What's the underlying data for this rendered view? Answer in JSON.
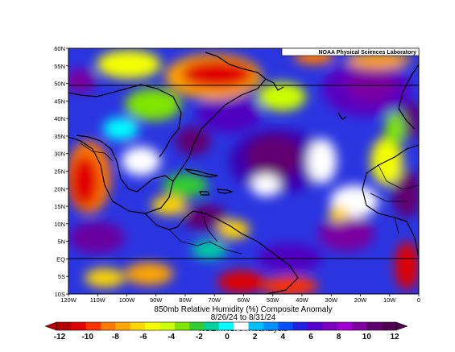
{
  "credit": "NOAA Physical Sciences Laboratory",
  "lat_labels": [
    "60N",
    "55N",
    "50N",
    "45N",
    "40N",
    "35N",
    "30N",
    "25N",
    "20N",
    "15N",
    "10N",
    "5N",
    "EQ",
    "5S",
    "10S"
  ],
  "lon_labels": [
    "120W",
    "110W",
    "100W",
    "90W",
    "80W",
    "70W",
    "60W",
    "50W",
    "40W",
    "30W",
    "20W",
    "10W",
    "0"
  ],
  "title": "850mb Relative Humidity (%) Composite Anomaly",
  "dates": "8/26/24  to 8/31/24",
  "source": "NCEP/NOAA Reanalysis",
  "colorbar": {
    "labels": [
      "-12",
      "-10",
      "-8",
      "-6",
      "-4",
      "-2",
      "0",
      "2",
      "4",
      "6",
      "8",
      "10",
      "12"
    ],
    "colors": [
      "#b40000",
      "#e00000",
      "#ff3300",
      "#ff7a00",
      "#ffa500",
      "#ffd700",
      "#f5ff00",
      "#cdff00",
      "#80e600",
      "#33cc33",
      "#00d0a0",
      "#00ffff",
      "#ffffff",
      "#00c0ff",
      "#0090ff",
      "#0050ff",
      "#2020e0",
      "#5500d0",
      "#7a00c0",
      "#a000d0",
      "#8000a0",
      "#600070",
      "#500050"
    ]
  },
  "map": {
    "lon_range": [
      -120,
      0
    ],
    "lat_range": [
      -10,
      60
    ],
    "background_color": "#2a35e0",
    "ref_lines_lat": [
      50,
      0
    ]
  }
}
